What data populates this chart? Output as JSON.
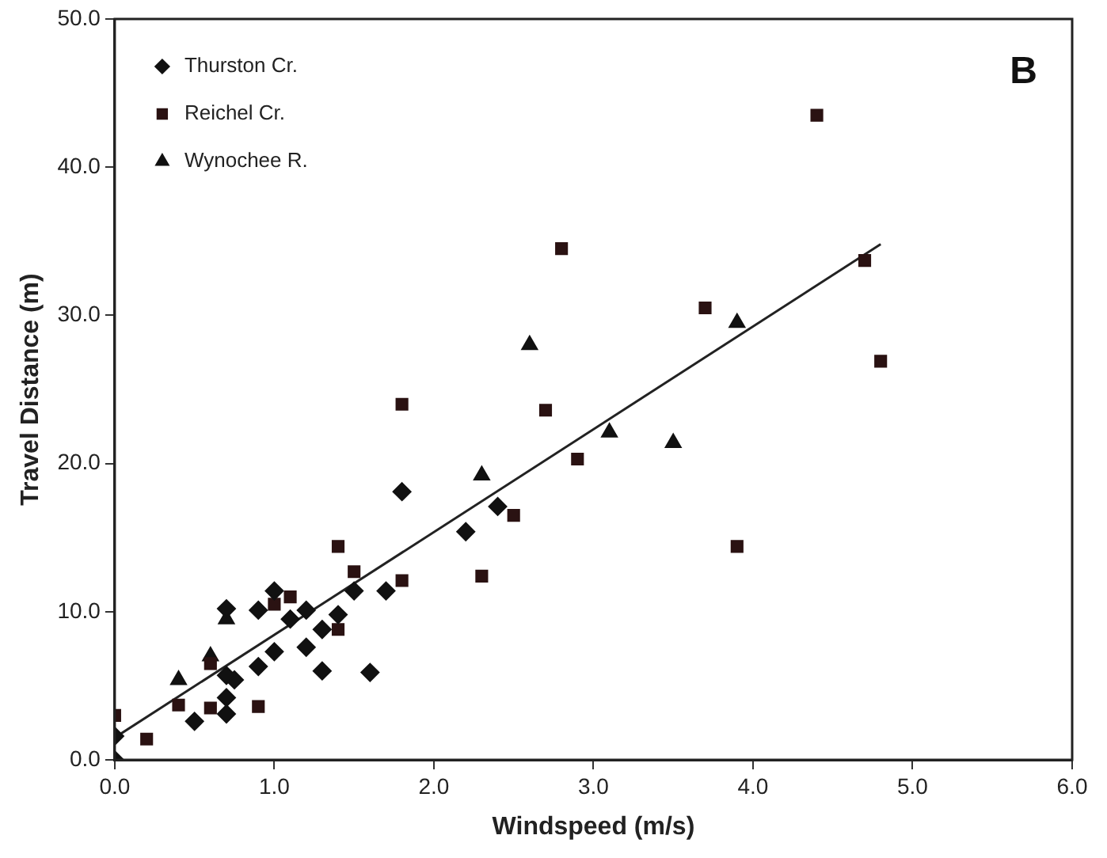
{
  "chart_data": {
    "type": "scatter",
    "xlabel": "Windspeed (m/s)",
    "ylabel": "Travel Distance (m)",
    "annotations": [
      "B"
    ],
    "xlim": [
      0,
      6
    ],
    "ylim": [
      0,
      50
    ],
    "xticks": [
      {
        "value": 0,
        "label": "0.0"
      },
      {
        "value": 1,
        "label": "1.0"
      },
      {
        "value": 2,
        "label": "2.0"
      },
      {
        "value": 3,
        "label": "3.0"
      },
      {
        "value": 4,
        "label": "4.0"
      },
      {
        "value": 5,
        "label": "5.0"
      },
      {
        "value": 6,
        "label": "6.0"
      }
    ],
    "yticks": [
      {
        "value": 0,
        "label": "0.0"
      },
      {
        "value": 10,
        "label": "10.0"
      },
      {
        "value": 20,
        "label": "20.0"
      },
      {
        "value": 30,
        "label": "30.0"
      },
      {
        "value": 40,
        "label": "40.0"
      },
      {
        "value": 50,
        "label": "50.0"
      }
    ],
    "grid": false,
    "legend": "top left",
    "series": [
      {
        "name": "Thurston Cr.",
        "color": "#111111",
        "marker": "diamond",
        "x": [
          0,
          0,
          0.5,
          0.7,
          0.7,
          0.75,
          0.7,
          0.9,
          0.9,
          1.0,
          1.0,
          1.1,
          1.2,
          1.2,
          1.3,
          1.3,
          1.4,
          1.5,
          1.6,
          1.7,
          1.8,
          2.2,
          2.4,
          0.7
        ],
        "values": [
          0,
          1.6,
          2.6,
          3.1,
          4.2,
          5.4,
          5.7,
          6.3,
          10.1,
          7.3,
          11.4,
          9.5,
          10.1,
          7.6,
          8.8,
          6.0,
          9.8,
          11.4,
          5.9,
          11.4,
          18.1,
          15.4,
          17.1,
          10.2
        ]
      },
      {
        "name": "Reichel Cr.",
        "color": "#2a1212",
        "marker": "square",
        "x": [
          0,
          0.2,
          0.4,
          0.6,
          0.6,
          0.9,
          1.0,
          1.1,
          1.4,
          1.4,
          1.5,
          1.8,
          1.8,
          2.3,
          2.5,
          2.7,
          2.8,
          2.9,
          3.7,
          3.9,
          4.4,
          4.7,
          4.8
        ],
        "values": [
          3.0,
          1.4,
          3.7,
          3.5,
          6.5,
          3.6,
          10.5,
          11.0,
          14.4,
          8.8,
          12.7,
          12.1,
          24.0,
          12.4,
          16.5,
          23.6,
          34.5,
          20.3,
          30.5,
          14.4,
          43.5,
          33.7,
          26.9
        ]
      },
      {
        "name": "Wynochee R.",
        "color": "#111111",
        "marker": "triangle",
        "x": [
          0.4,
          0.6,
          0.7,
          2.3,
          2.6,
          3.1,
          3.5,
          3.9
        ],
        "values": [
          5.4,
          7.0,
          9.5,
          19.2,
          28.0,
          22.1,
          21.4,
          29.5
        ]
      },
      {
        "type": "line",
        "color": "#222222",
        "marker": "none",
        "line_style": "solid",
        "x": [
          0,
          4.8
        ],
        "values": [
          1.5,
          34.8
        ]
      }
    ]
  }
}
